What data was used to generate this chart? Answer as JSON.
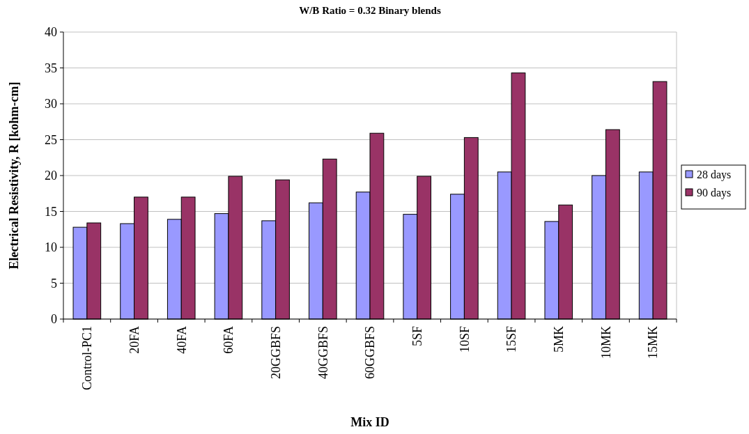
{
  "chart_data": {
    "type": "bar",
    "title": "W/B Ratio = 0.32 Binary blends",
    "xlabel": "Mix ID",
    "ylabel": "Electrical Resistivity, R [kohm-cm]",
    "categories": [
      "Control-PC1",
      "20FA",
      "40FA",
      "60FA",
      "20GGBFS",
      "40GGBFS",
      "60GGBFS",
      "5SF",
      "10SF",
      "15SF",
      "5MK",
      "10MK",
      "15MK"
    ],
    "series": [
      {
        "name": "28 days",
        "color": "#9999ff",
        "values": [
          12.8,
          13.3,
          13.9,
          14.7,
          13.7,
          16.2,
          17.7,
          14.6,
          17.4,
          20.5,
          13.6,
          20.0,
          20.5
        ]
      },
      {
        "name": "90 days",
        "color": "#993366",
        "values": [
          13.4,
          17.0,
          17.0,
          19.9,
          19.4,
          22.3,
          25.9,
          19.9,
          25.3,
          34.3,
          15.9,
          26.4,
          33.1
        ]
      }
    ],
    "ylim": [
      0,
      40
    ],
    "yticks": [
      0,
      5,
      10,
      15,
      20,
      25,
      30,
      35,
      40
    ],
    "grid": "y",
    "legend": "right"
  }
}
